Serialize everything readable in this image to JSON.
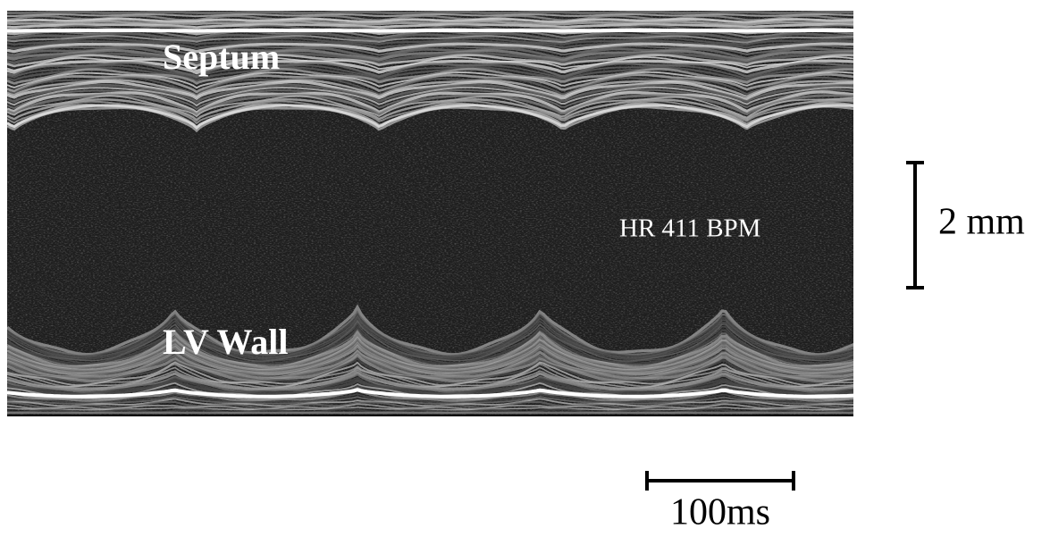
{
  "image": {
    "labels": {
      "septum": "Septum",
      "lv_wall": "LV Wall",
      "heart_rate": "HR 411 BPM"
    },
    "scale_bars": {
      "vertical": "2 mm",
      "horizontal": "100ms"
    }
  }
}
